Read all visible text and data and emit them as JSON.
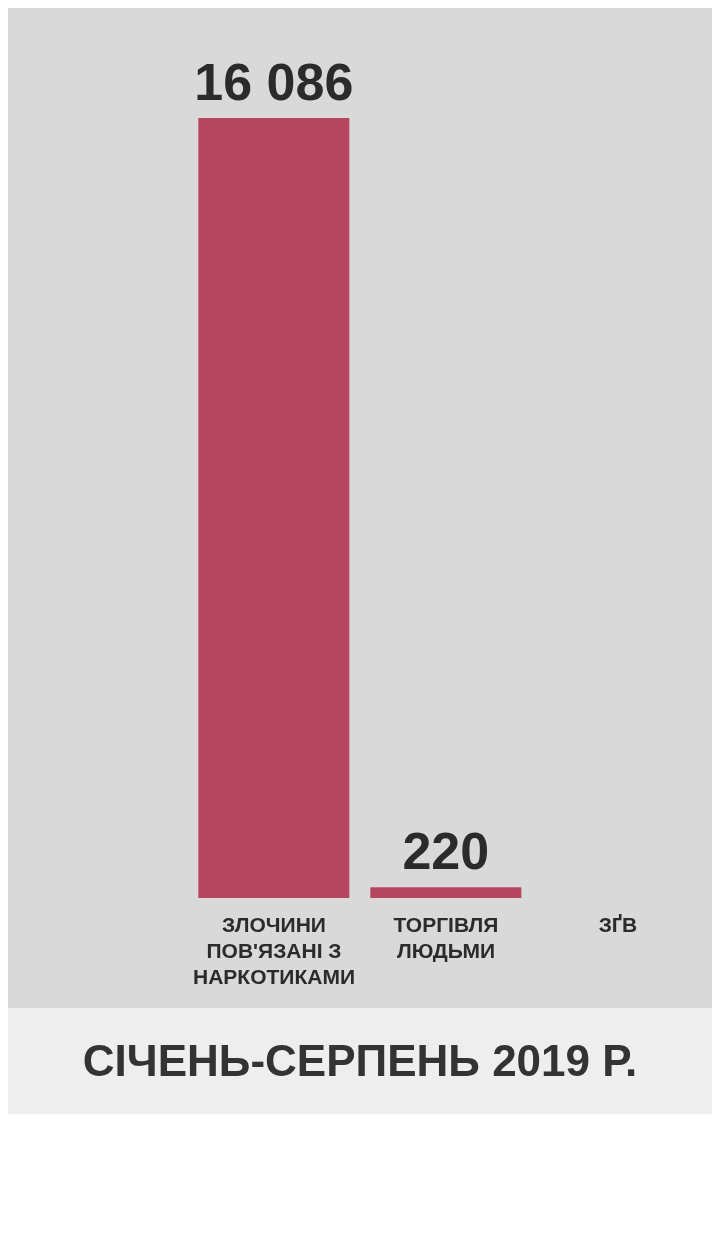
{
  "chart_data": {
    "type": "bar",
    "categories": [
      null,
      "ЗЛОЧИНИ ПОВ'ЯЗАНІ З НАРКОТИКАМИ",
      "ТОРГІВЛЯ ЛЮДЬМИ",
      "ЗҐВ"
    ],
    "values": [
      null,
      16086,
      220,
      null
    ],
    "value_labels": [
      null,
      "16 086",
      "220",
      null
    ],
    "color": "#b5465f",
    "annotations": [
      "СІЧЕНЬ-СЕРПЕНЬ 2019 Р."
    ]
  }
}
